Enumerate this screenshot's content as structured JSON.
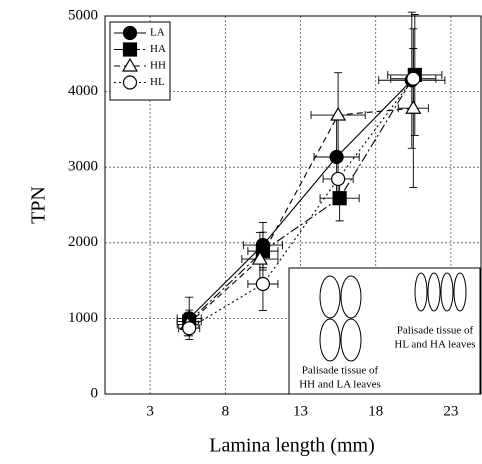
{
  "chart_data": {
    "type": "scatter-line",
    "xlabel": "Lamina length (mm)",
    "ylabel": "TPN",
    "xlim": [
      0,
      25
    ],
    "ylim": [
      0,
      5000
    ],
    "xticks": [
      3,
      8,
      13,
      18,
      23
    ],
    "yticks": [
      0,
      1000,
      2000,
      3000,
      4000,
      5000
    ],
    "grid": true,
    "legend": "upper left",
    "series": [
      {
        "name": "LA",
        "color": "#000000",
        "marker": "circle",
        "filled": true,
        "dash": "none",
        "x": [
          5.6,
          10.5,
          15.4,
          20.4
        ],
        "values": [
          1000,
          1970,
          3135,
          4150
        ],
        "xerr": [
          0.8,
          1.3,
          1.5,
          2.2
        ],
        "yerr": [
          280,
          300,
          500,
          900
        ]
      },
      {
        "name": "HA",
        "color": "#000000",
        "marker": "square",
        "filled": true,
        "dash": "9 3 2 3",
        "x": [
          5.6,
          10.5,
          15.6,
          20.6
        ],
        "values": [
          960,
          1890,
          2590,
          4220
        ],
        "xerr": [
          0.8,
          1.0,
          1.3,
          1.8
        ],
        "yerr": [
          150,
          250,
          300,
          800
        ]
      },
      {
        "name": "HH",
        "color": "#000000",
        "marker": "triangle",
        "filled": false,
        "dash": "6 4",
        "x": [
          5.5,
          10.3,
          15.5,
          20.5
        ],
        "values": [
          920,
          1785,
          3690,
          3780
        ],
        "xerr": [
          0.7,
          1.2,
          1.8,
          1.0
        ],
        "yerr": [
          150,
          350,
          560,
          1050
        ]
      },
      {
        "name": "HL",
        "color": "#000000",
        "marker": "circle",
        "filled": false,
        "dash": "2 3",
        "x": [
          5.6,
          10.5,
          15.5,
          20.5
        ],
        "values": [
          870,
          1455,
          2845,
          4170
        ],
        "xerr": [
          0.7,
          1.0,
          1.0,
          1.5
        ],
        "yerr": [
          100,
          350,
          300,
          400
        ]
      }
    ],
    "annotations": [
      {
        "lines": [
          "Palisade tissue of",
          "HL and HA leaves"
        ]
      },
      {
        "lines": [
          "Palisade tissue of",
          "HH and LA leaves"
        ]
      }
    ]
  }
}
